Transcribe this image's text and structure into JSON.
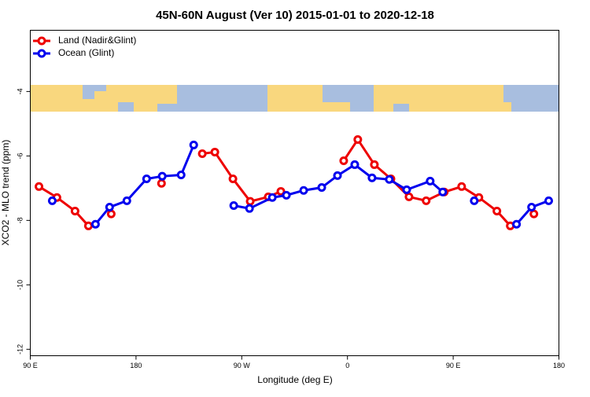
{
  "chart_data": {
    "type": "line",
    "title": "45N-60N August (Ver 10)   2015-01-01 to 2020-12-18",
    "x_label": "Longitude (deg E)",
    "y_label": "XCO2 - MLO trend (ppm)",
    "xlim": [
      90,
      540
    ],
    "xticks": [
      {
        "value": 90,
        "label": "90 E"
      },
      {
        "value": 180,
        "label": "180"
      },
      {
        "value": 270,
        "label": "90 W"
      },
      {
        "value": 360,
        "label": "0"
      },
      {
        "value": 450,
        "label": "90 E"
      },
      {
        "value": 540,
        "label": "180"
      }
    ],
    "ylim": [
      -12.2,
      -2.1
    ],
    "yticks": [
      -4,
      -6,
      -8,
      -10,
      -12
    ],
    "legend": "top-left",
    "series": [
      {
        "name": "Land (Nadir&Glint)",
        "color": "#ee0000",
        "x": [
          97.4,
          112.7,
          128.1,
          139.5,
          null,
          158.9,
          null,
          201.7,
          null,
          236.4,
          247.1,
          262.5,
          277.2,
          292.6,
          303.3,
          null,
          356.8,
          368.8,
          382.9,
          397.0,
          412.4,
          427.0,
          442.4,
          457.2,
          471.9,
          487.2,
          498.6,
          null,
          518.7
        ],
        "values": [
          -6.95,
          -7.29,
          -7.71,
          -8.17,
          null,
          -7.8,
          null,
          -6.85,
          null,
          -5.93,
          -5.88,
          -6.71,
          -7.41,
          -7.27,
          -7.1,
          null,
          -6.15,
          -5.49,
          -6.27,
          -6.71,
          -7.27,
          -7.39,
          -7.12,
          -6.95,
          -7.29,
          -7.71,
          -8.17,
          null,
          -7.8
        ]
      },
      {
        "name": "Ocean (Glint)",
        "color": "#0000ee",
        "x": [
          108.7,
          null,
          145.5,
          157.5,
          172.2,
          189.0,
          202.3,
          218.4,
          229.1,
          null,
          263.2,
          276.6,
          296.0,
          308.0,
          322.7,
          338.1,
          351.5,
          366.2,
          380.9,
          395.6,
          410.4,
          430.4,
          441.1,
          null,
          467.9,
          null,
          503.9,
          516.7,
          531.3
        ],
        "values": [
          -7.39,
          null,
          -8.12,
          -7.59,
          -7.39,
          -6.71,
          -6.63,
          -6.59,
          -5.66,
          null,
          -7.54,
          -7.63,
          -7.29,
          -7.22,
          -7.07,
          -6.98,
          -6.61,
          -6.27,
          -6.68,
          -6.73,
          -7.05,
          -6.78,
          -7.12,
          null,
          -7.39,
          null,
          -8.12,
          -7.59,
          -7.39
        ]
      }
    ]
  }
}
